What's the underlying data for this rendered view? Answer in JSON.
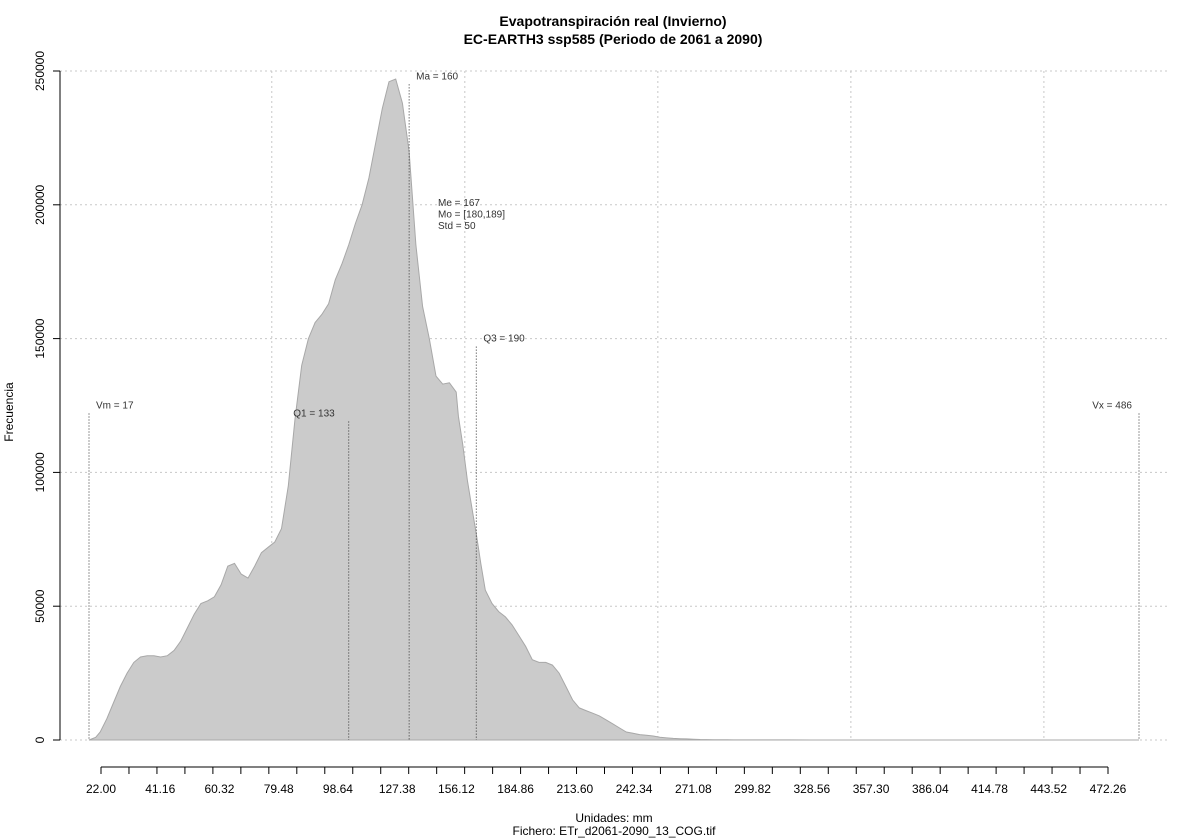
{
  "chart_data": {
    "type": "area",
    "title": "Evapotranspiración real (Invierno)",
    "subtitle": "EC-EARTH3 ssp585 (Periodo de 2061 a 2090)",
    "xlabel": "Unidades: mm",
    "ylabel": "Frecuencia",
    "footer": "Fichero: ETr_d2061-2090_13_COG.tif",
    "xlim": [
      17,
      486
    ],
    "ylim": [
      0,
      250000
    ],
    "x_tick_labels": [
      "22.00",
      "41.16",
      "60.32",
      "79.48",
      "98.64",
      "127.38",
      "156.12",
      "184.86",
      "213.60",
      "242.34",
      "271.08",
      "299.82",
      "328.56",
      "357.30",
      "386.04",
      "414.78",
      "443.52",
      "472.26"
    ],
    "y_tick_values": [
      0,
      50000,
      100000,
      150000,
      200000,
      250000
    ],
    "y_tick_labels": [
      "0",
      "50000",
      "100000",
      "150000",
      "200000",
      "250000"
    ],
    "x_grid": [
      98.64,
      184.86,
      271.08,
      357.3,
      443.52
    ],
    "grid": true,
    "fill_color": "#cbcbcb",
    "series": [
      {
        "x": [
          17,
          20,
          22,
          25,
          28,
          31,
          34,
          37,
          40,
          43,
          46,
          49,
          52,
          55,
          58,
          61,
          64,
          67,
          70,
          73,
          76,
          79,
          82,
          85,
          88,
          91,
          94,
          97,
          100,
          103,
          106,
          109,
          112,
          115,
          118,
          121,
          124,
          127,
          130,
          133,
          136,
          139,
          142,
          145,
          148,
          151,
          154,
          157,
          160,
          163,
          166,
          169,
          172,
          175,
          178,
          181,
          182,
          184,
          186,
          188,
          190,
          192,
          194,
          197,
          200,
          203,
          206,
          209,
          212,
          215,
          218,
          221,
          224,
          227,
          230,
          233,
          236,
          239,
          242,
          245,
          248,
          251,
          254,
          257,
          260,
          263,
          266,
          269,
          272,
          275,
          278,
          281,
          284,
          287,
          290,
          293,
          296,
          299,
          302,
          305,
          310,
          320,
          330,
          340,
          350,
          370,
          400,
          440,
          486
        ],
        "y": [
          0,
          1000,
          3000,
          8000,
          14000,
          20000,
          25000,
          29000,
          31000,
          31500,
          31500,
          31000,
          31500,
          33500,
          37000,
          42000,
          47000,
          51000,
          52000,
          53500,
          58000,
          65000,
          66000,
          62000,
          60500,
          65000,
          70000,
          72000,
          74000,
          79000,
          95000,
          120000,
          140000,
          150000,
          156000,
          159000,
          163000,
          172000,
          178000,
          185000,
          193000,
          200000,
          210000,
          223000,
          236000,
          246000,
          247000,
          238000,
          220000,
          185000,
          162000,
          150000,
          136000,
          133000,
          133500,
          130000,
          121000,
          110000,
          97000,
          87000,
          77000,
          66000,
          56000,
          51000,
          48000,
          46000,
          43000,
          39000,
          35000,
          30000,
          29000,
          29000,
          28000,
          25000,
          20000,
          15000,
          12000,
          11000,
          10000,
          9000,
          7500,
          6000,
          4500,
          3000,
          2500,
          2000,
          1800,
          1500,
          1000,
          800,
          600,
          500,
          400,
          300,
          200,
          150,
          100,
          80,
          60,
          50,
          40,
          30,
          20,
          15,
          10,
          5,
          2,
          1,
          0
        ]
      }
    ],
    "markers": [
      {
        "label": "Vm = 17",
        "x": 17,
        "y": 122000
      },
      {
        "label": "Q1 = 133",
        "x": 133,
        "y": 119000
      },
      {
        "label": "Ma = 160",
        "x": 160,
        "y": 245000
      },
      {
        "label": "Q3 = 190",
        "x": 190,
        "y": 147000
      },
      {
        "label": "Vx = 486",
        "x": 486,
        "y": 122000
      }
    ],
    "stats_annotation": [
      "Me = 167",
      "Mo = [180,189]",
      "Std = 50"
    ]
  }
}
